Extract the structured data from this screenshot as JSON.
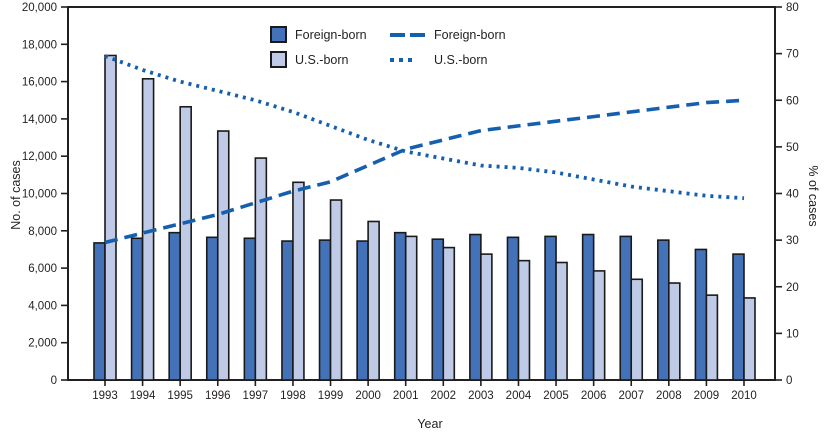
{
  "chart_data": {
    "type": "bar",
    "subtype": "grouped bars with two percentage trend lines",
    "xlabel": "Year",
    "ylabel_left": "No. of cases",
    "ylabel_right": "% of cases",
    "years": [
      1993,
      1994,
      1995,
      1996,
      1997,
      1998,
      1999,
      2000,
      2001,
      2002,
      2003,
      2004,
      2005,
      2006,
      2007,
      2008,
      2009,
      2010
    ],
    "left_axis": {
      "min": 0,
      "max": 20000,
      "tick_step": 2000,
      "tick_labels": [
        "0",
        "2,000",
        "4,000",
        "6,000",
        "8,000",
        "10,000",
        "12,000",
        "14,000",
        "16,000",
        "18,000",
        "20,000"
      ]
    },
    "right_axis": {
      "min": 0,
      "max": 80,
      "tick_step": 10,
      "tick_labels": [
        "0",
        "10",
        "20",
        "30",
        "40",
        "50",
        "60",
        "70",
        "80"
      ]
    },
    "bar_series": [
      {
        "name": "Foreign-born",
        "axis": "left",
        "values": [
          7350,
          7600,
          7900,
          7650,
          7600,
          7450,
          7500,
          7450,
          7900,
          7550,
          7800,
          7650,
          7700,
          7800,
          7700,
          7500,
          7000,
          6750
        ]
      },
      {
        "name": "U.S.-born",
        "axis": "left",
        "values": [
          17400,
          16150,
          14650,
          13350,
          11900,
          10600,
          9650,
          8500,
          7700,
          7100,
          6750,
          6400,
          6300,
          5850,
          5400,
          5200,
          4550,
          4400
        ]
      }
    ],
    "line_series": [
      {
        "name": "Foreign-born",
        "axis": "right",
        "style": "dashed",
        "values": [
          29.5,
          31.5,
          33.5,
          35.5,
          38,
          40.5,
          42.5,
          46,
          49.5,
          51.5,
          53.5,
          54.5,
          55.5,
          56.5,
          57.5,
          58.5,
          59.5,
          60
        ]
      },
      {
        "name": "U.S.-born",
        "axis": "right",
        "style": "dotted",
        "values": [
          69.5,
          66.5,
          64,
          62,
          60,
          57.5,
          54.5,
          51.5,
          49,
          47.5,
          46,
          45.5,
          44.5,
          43,
          41.5,
          40.5,
          39.5,
          39
        ]
      }
    ],
    "legend": {
      "bar_entries": [
        {
          "label": "Foreign-born"
        },
        {
          "label": "U.S.-born"
        }
      ],
      "line_entries": [
        {
          "label": "Foreign-born"
        },
        {
          "label": "U.S.-born"
        }
      ]
    },
    "colors": {
      "bar_foreign_born": "#4472B8",
      "bar_us_born": "#BFCAE6",
      "bar_outline": "#1A1A1A",
      "trend_line": "#1460AE",
      "axis": "#231F20"
    },
    "grid": "off",
    "legend_position": "top-center-inside"
  }
}
